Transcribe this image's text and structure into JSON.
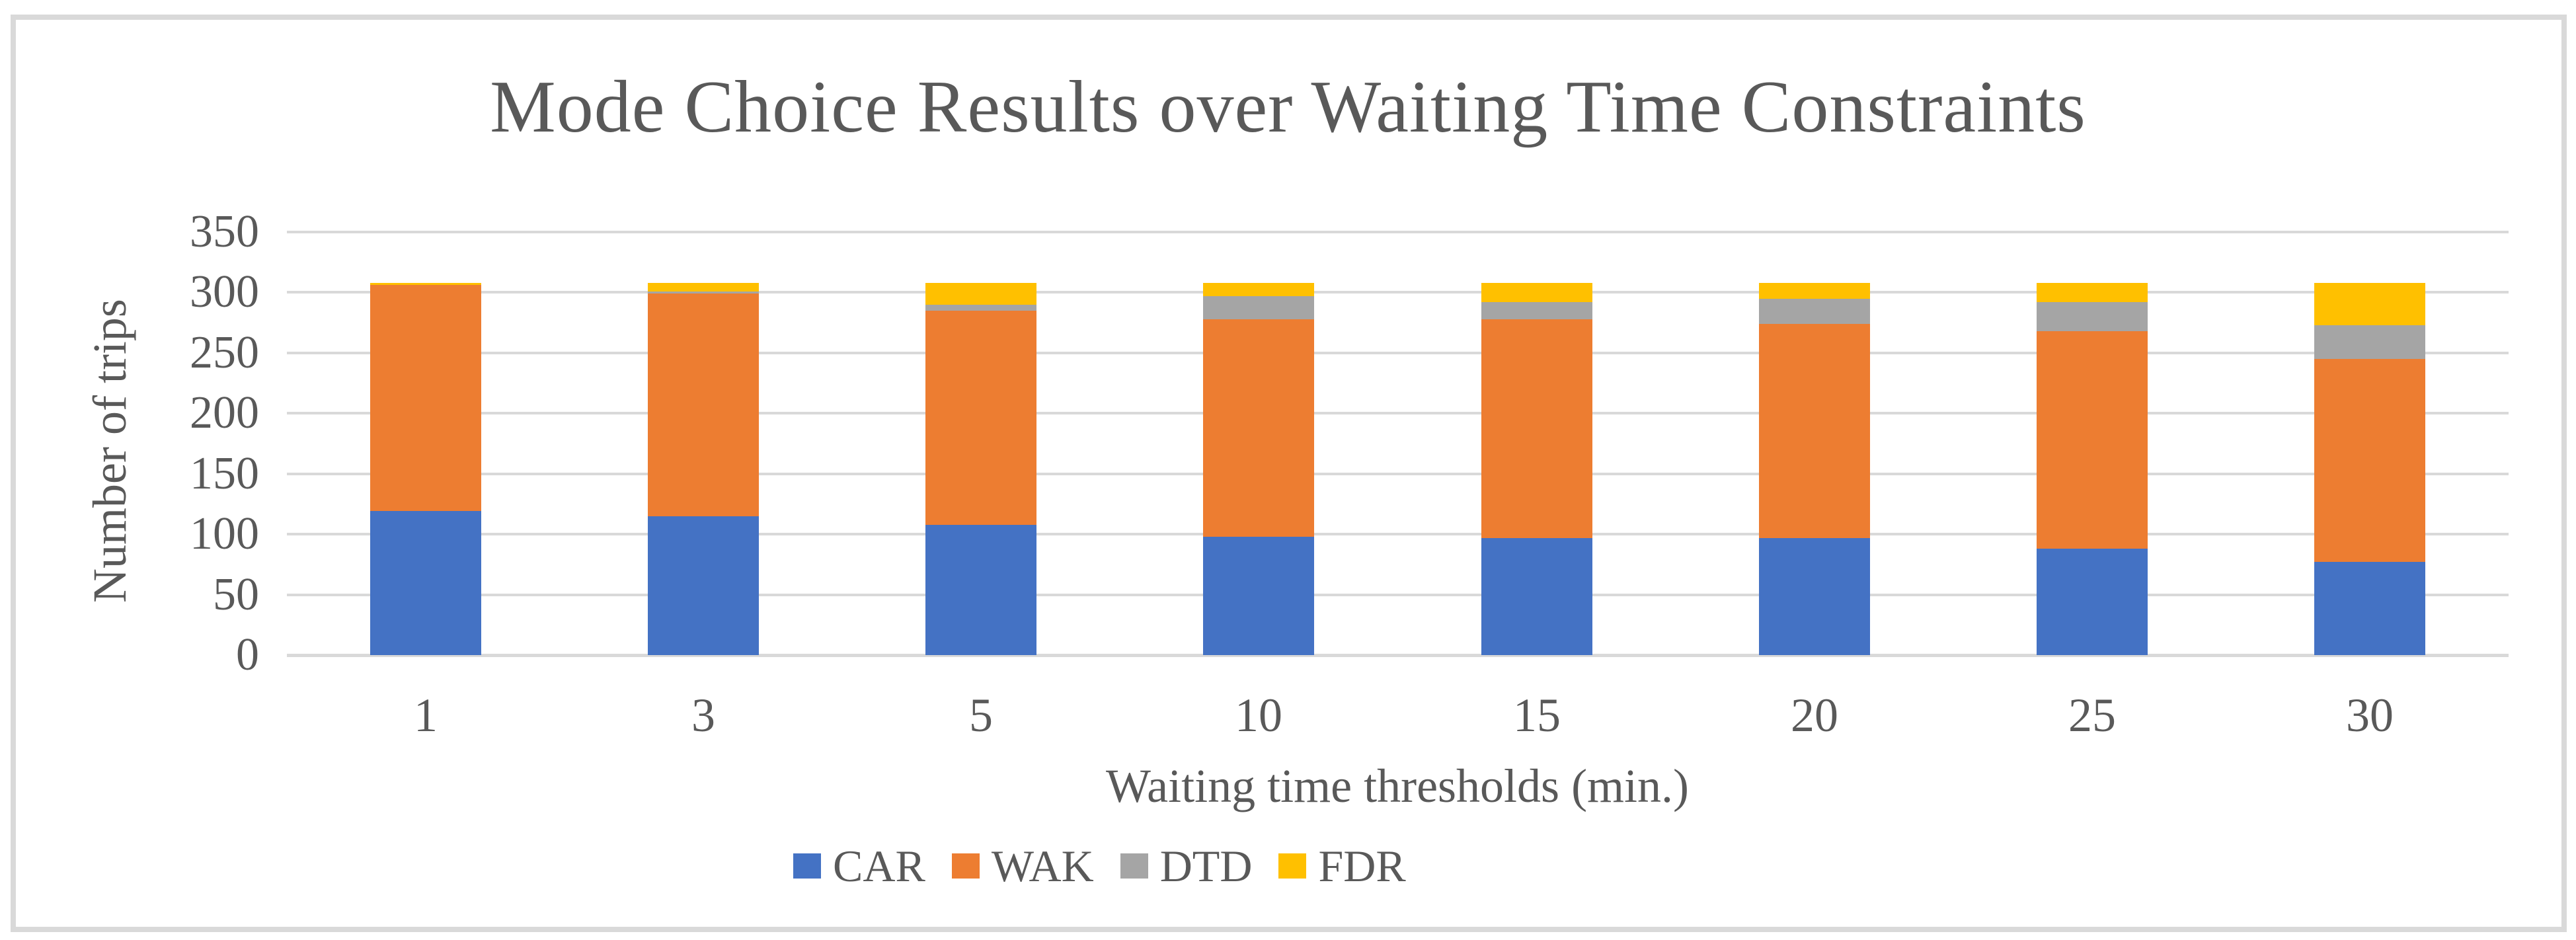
{
  "chart": {
    "title": "Mode Choice Results over Waiting Time Constraints",
    "xlabel": "Waiting time thresholds (min.)",
    "ylabel": "Number of trips"
  },
  "chart_data": {
    "type": "bar",
    "stacked": true,
    "title": "Mode Choice Results over Waiting Time Constraints",
    "xlabel": "Waiting time thresholds (min.)",
    "ylabel": "Number of trips",
    "categories": [
      "1",
      "3",
      "5",
      "10",
      "15",
      "20",
      "25",
      "30"
    ],
    "series": [
      {
        "name": "CAR",
        "color": "#4472C4",
        "values": [
          119,
          115,
          108,
          98,
          97,
          97,
          88,
          77
        ]
      },
      {
        "name": "WAK",
        "color": "#ED7D31",
        "values": [
          187,
          184,
          177,
          180,
          181,
          177,
          180,
          168
        ]
      },
      {
        "name": "DTD",
        "color": "#A5A5A5",
        "values": [
          0,
          2,
          5,
          19,
          14,
          21,
          24,
          28
        ]
      },
      {
        "name": "FDR",
        "color": "#FFC000",
        "values": [
          2,
          7,
          18,
          11,
          16,
          13,
          16,
          35
        ]
      }
    ],
    "ylim": [
      0,
      350
    ],
    "yticks": [
      0,
      50,
      100,
      150,
      200,
      250,
      300,
      350
    ],
    "grid": true,
    "legend_position": "bottom"
  },
  "colors": {
    "text": "#595959",
    "gridline": "#D9D9D9",
    "axis_line": "#D9D9D9",
    "frame_border": "#D9D9D9",
    "background": "#FFFFFF"
  }
}
